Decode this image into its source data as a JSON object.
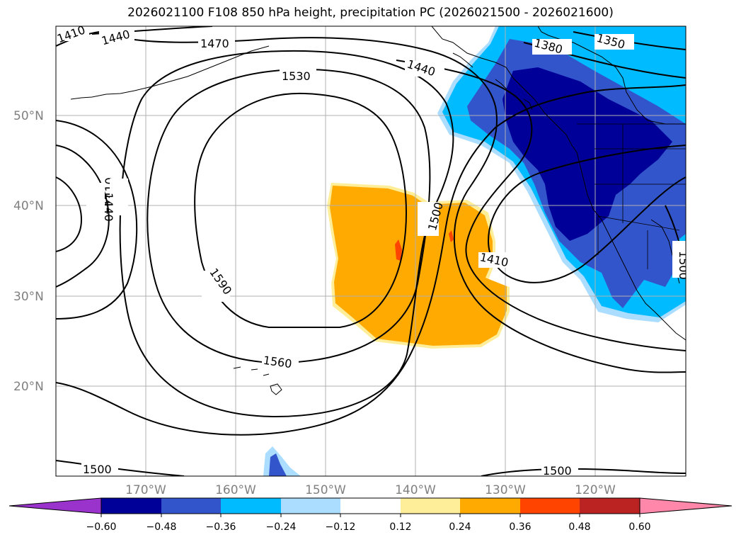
{
  "title": "2026021100 F108 850 hPa height, precipitation PC (2026021500 - 2026021600)",
  "map": {
    "lat_labels": [
      "50°N",
      "40°N",
      "30°N",
      "20°N"
    ],
    "lon_labels": [
      "170°W",
      "160°W",
      "150°W",
      "140°W",
      "130°W",
      "120°W"
    ],
    "contour_labels": [
      "1410",
      "1440",
      "1470",
      "1530",
      "1440",
      "1380",
      "1350",
      "1410",
      "1440",
      "1500",
      "1410",
      "1590",
      "1560",
      "1500",
      "1500",
      "1500"
    ]
  },
  "colorbar": {
    "tick_labels": [
      "−0.60",
      "−0.48",
      "−0.36",
      "−0.24",
      "−0.12",
      "0.12",
      "0.24",
      "0.36",
      "0.48",
      "0.60"
    ],
    "colors": [
      "#9933cc",
      "#000099",
      "#3355cc",
      "#00bbff",
      "#aaddff",
      "#ffffff",
      "#ffee99",
      "#ffaa00",
      "#ff4400",
      "#bb2222",
      "#ff88aa"
    ]
  }
}
